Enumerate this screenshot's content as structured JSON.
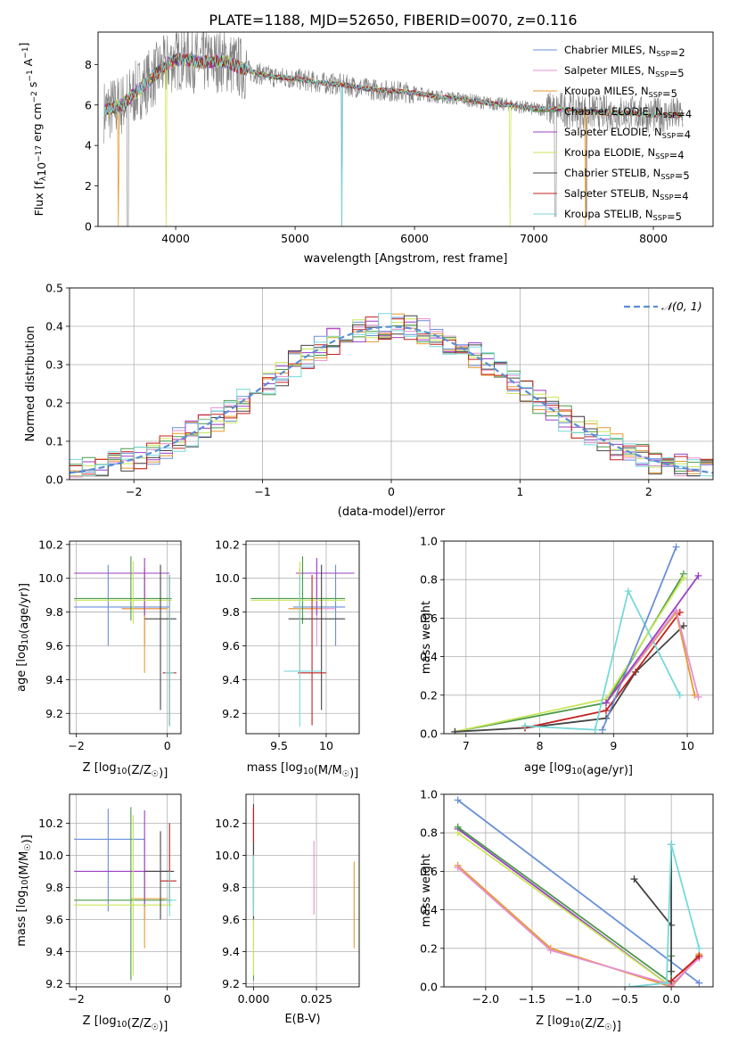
{
  "figure_title": "PLATE=1188, MJD=52650, FIBERID=0070, z=0.116",
  "colors": {
    "Chabrier MILES": "#6a8fd8",
    "Salpeter MILES": "#e58fd0",
    "Kroupa MILES": "#e69a2e",
    "Chabrier ELODIE": "#4a9a4a",
    "Salpeter ELODIE": "#9b3fc4",
    "Kroupa ELODIE": "#c8e65a",
    "Chabrier STELIB": "#444444",
    "Salpeter STELIB": "#c42020",
    "Kroupa STELIB": "#78d8d8",
    "gauss": "#5b8fd9",
    "data": "#808080"
  },
  "chart_data": [
    {
      "id": "spectrum",
      "type": "line",
      "xlabel": "wavelength [Angstrom, rest frame]",
      "ylabel": "Flux [f",
      "ylabel_sub": "λ",
      "ylabel_rest": "10",
      "ylabel_exp": "−17",
      "ylabel_units": " erg cm",
      "ylabel_exp2": "−2",
      "ylabel_s": " s",
      "ylabel_exp3": "−1",
      "ylabel_a": " A",
      "ylabel_exp4": "−1",
      "ylabel_end": "]",
      "xlim": [
        3350,
        8500
      ],
      "ylim": [
        0,
        9.6
      ],
      "xticks": [
        4000,
        5000,
        6000,
        7000,
        8000
      ],
      "yticks": [
        0,
        2,
        4,
        6,
        8
      ],
      "legend_position": "top-right",
      "grid": false,
      "legend": [
        {
          "label": "Chabrier MILES, N",
          "sub": "SSP",
          "tail": "=2"
        },
        {
          "label": "Salpeter MILES, N",
          "sub": "SSP",
          "tail": "=5"
        },
        {
          "label": "Kroupa MILES, N",
          "sub": "SSP",
          "tail": "=5"
        },
        {
          "label": "Chabrier ELODIE, N",
          "sub": "SSP",
          "tail": "=4"
        },
        {
          "label": "Salpeter ELODIE, N",
          "sub": "SSP",
          "tail": "=4"
        },
        {
          "label": "Kroupa ELODIE, N",
          "sub": "SSP",
          "tail": "=4"
        },
        {
          "label": "Chabrier STELIB, N",
          "sub": "SSP",
          "tail": "=5"
        },
        {
          "label": "Salpeter STELIB, N",
          "sub": "SSP",
          "tail": "=4"
        },
        {
          "label": "Kroupa STELIB, N",
          "sub": "SSP",
          "tail": "=5"
        }
      ],
      "continuum": {
        "x": [
          3400,
          3550,
          3700,
          3850,
          3950,
          4050,
          4200,
          4400,
          4600,
          4800,
          5000,
          5200,
          5400,
          5600,
          5800,
          6000,
          6200,
          6400,
          6600,
          6800,
          7000,
          7200,
          7400,
          7600,
          7800,
          8000,
          8250
        ],
        "y": [
          5.7,
          6.0,
          6.8,
          7.6,
          8.1,
          8.3,
          8.1,
          8.2,
          7.7,
          7.4,
          7.3,
          7.1,
          7.0,
          6.8,
          6.7,
          6.6,
          6.4,
          6.3,
          6.1,
          6.0,
          5.8,
          5.8,
          5.7,
          5.6,
          5.6,
          5.5,
          5.5
        ]
      }
    },
    {
      "id": "residuals",
      "type": "step",
      "xlabel": "(data-model)/error",
      "ylabel": "Normed distribution",
      "xlim": [
        -2.5,
        2.5
      ],
      "ylim": [
        0,
        0.5
      ],
      "xticks": [
        -2,
        -1,
        0,
        1,
        2
      ],
      "yticks": [
        0.0,
        0.1,
        0.2,
        0.3,
        0.4,
        0.5
      ],
      "grid": true,
      "legend": [
        {
          "label": "𝒩(0, 1)"
        }
      ],
      "legend_position": "top-right",
      "gaussian": {
        "mu": 0,
        "sigma": 1
      },
      "bin_width": 0.1
    },
    {
      "id": "age_vs_Z",
      "type": "errorbar",
      "xlabel": "Z [log",
      "xlabel_sub": "10",
      "xlabel_rest": "(Z/Z",
      "xlabel_sub2": "☉",
      "xlabel_end": ")]",
      "ylabel": "age  [log",
      "ylabel_sub": "10",
      "ylabel_rest": "(age/yr)]",
      "xlim": [
        -2.15,
        0.3
      ],
      "ylim": [
        9.08,
        10.22
      ],
      "xticks": [
        -2,
        0
      ],
      "yticks": [
        9.2,
        9.4,
        9.6,
        9.8,
        10.0,
        10.2
      ],
      "grid": true,
      "points": [
        {
          "model": "Chabrier MILES",
          "x": -1.3,
          "xlo": -2.05,
          "xhi": 0.05,
          "y": 9.83,
          "ylo": 9.6,
          "yhi": 10.08
        },
        {
          "model": "Salpeter MILES",
          "x": -0.5,
          "xlo": -1.0,
          "xhi": 0.0,
          "y": 9.82,
          "ylo": 9.6,
          "yhi": 10.06
        },
        {
          "model": "Kroupa MILES",
          "x": -0.5,
          "xlo": -1.0,
          "xhi": 0.0,
          "y": 9.82,
          "ylo": 9.44,
          "yhi": 10.06
        },
        {
          "model": "Chabrier ELODIE",
          "x": -0.8,
          "xlo": -2.05,
          "xhi": 0.1,
          "y": 9.88,
          "ylo": 9.75,
          "yhi": 10.13
        },
        {
          "model": "Salpeter ELODIE",
          "x": -0.5,
          "xlo": -2.05,
          "xhi": 0.05,
          "y": 10.03,
          "ylo": 9.78,
          "yhi": 10.12
        },
        {
          "model": "Kroupa ELODIE",
          "x": -0.75,
          "xlo": -2.05,
          "xhi": 0.1,
          "y": 9.87,
          "ylo": 9.73,
          "yhi": 10.1
        },
        {
          "model": "Chabrier STELIB",
          "x": -0.15,
          "xlo": -0.5,
          "xhi": 0.2,
          "y": 9.76,
          "ylo": 9.22,
          "yhi": 10.08
        },
        {
          "model": "Salpeter STELIB",
          "x": 0.05,
          "xlo": -0.1,
          "xhi": 0.2,
          "y": 9.44,
          "ylo": 9.13,
          "yhi": 10.02
        },
        {
          "model": "Kroupa STELIB",
          "x": 0.05,
          "xlo": -0.05,
          "xhi": 0.15,
          "y": 9.44,
          "ylo": 9.12,
          "yhi": 10.02
        }
      ]
    },
    {
      "id": "age_vs_mass",
      "type": "errorbar",
      "xlabel": "mass [log",
      "xlabel_sub": "10",
      "xlabel_rest": "(M/M",
      "xlabel_sub2": "☉",
      "xlabel_end": ")]",
      "xlim": [
        9.15,
        10.35
      ],
      "ylim": [
        9.08,
        10.22
      ],
      "xticks": [
        9.5,
        10.0
      ],
      "yticks": [
        9.2,
        9.4,
        9.6,
        9.8,
        10.0,
        10.2
      ],
      "grid": true,
      "points": [
        {
          "model": "Chabrier MILES",
          "x": 10.1,
          "xlo": 9.65,
          "xhi": 10.2,
          "y": 9.83,
          "ylo": 9.6,
          "yhi": 10.08
        },
        {
          "model": "Salpeter MILES",
          "x": 9.9,
          "xlo": 9.6,
          "xhi": 10.1,
          "y": 9.82,
          "ylo": 9.6,
          "yhi": 10.1
        },
        {
          "model": "Kroupa MILES",
          "x": 9.72,
          "xlo": 9.6,
          "xhi": 9.95,
          "y": 9.82,
          "ylo": 9.44,
          "yhi": 10.06
        },
        {
          "model": "Chabrier ELODIE",
          "x": 9.75,
          "xlo": 9.2,
          "xhi": 10.2,
          "y": 9.88,
          "ylo": 9.73,
          "yhi": 10.13
        },
        {
          "model": "Salpeter ELODIE",
          "x": 9.9,
          "xlo": 9.68,
          "xhi": 10.3,
          "y": 10.03,
          "ylo": 9.78,
          "yhi": 10.12
        },
        {
          "model": "Kroupa ELODIE",
          "x": 9.72,
          "xlo": 9.2,
          "xhi": 10.2,
          "y": 9.87,
          "ylo": 9.73,
          "yhi": 10.1
        },
        {
          "model": "Chabrier STELIB",
          "x": 9.95,
          "xlo": 9.6,
          "xhi": 10.2,
          "y": 9.76,
          "ylo": 9.22,
          "yhi": 10.08
        },
        {
          "model": "Salpeter STELIB",
          "x": 9.85,
          "xlo": 9.7,
          "xhi": 10.0,
          "y": 9.44,
          "ylo": 9.13,
          "yhi": 10.02
        },
        {
          "model": "Kroupa STELIB",
          "x": 9.72,
          "xlo": 9.55,
          "xhi": 9.95,
          "y": 9.45,
          "ylo": 9.12,
          "yhi": 10.02
        }
      ]
    },
    {
      "id": "weight_vs_age",
      "type": "line",
      "xlabel": "age  [log",
      "xlabel_sub": "10",
      "xlabel_rest": "(age/yr)]",
      "ylabel": "mass weight",
      "xlim": [
        6.7,
        10.35
      ],
      "ylim": [
        0,
        1.0
      ],
      "xticks": [
        7,
        8,
        9,
        10
      ],
      "yticks": [
        0.0,
        0.2,
        0.4,
        0.6,
        0.8,
        1.0
      ],
      "grid": true,
      "series": [
        {
          "model": "Chabrier ELODIE",
          "x": [
            6.85,
            8.9,
            9.95
          ],
          "y": [
            0.01,
            0.16,
            0.83
          ]
        },
        {
          "model": "Kroupa ELODIE",
          "x": [
            6.85,
            8.9,
            9.95
          ],
          "y": [
            0.01,
            0.18,
            0.81
          ]
        },
        {
          "model": "Chabrier STELIB",
          "x": [
            6.85,
            7.8,
            8.9,
            9.3,
            9.95
          ],
          "y": [
            0.01,
            0.03,
            0.08,
            0.32,
            0.56
          ]
        },
        {
          "model": "Salpeter STELIB",
          "x": [
            7.8,
            8.9,
            9.9
          ],
          "y": [
            0.03,
            0.12,
            0.63
          ]
        },
        {
          "model": "Kroupa STELIB",
          "x": [
            7.8,
            8.75,
            9.2,
            9.9
          ],
          "y": [
            0.04,
            0.02,
            0.74,
            0.2
          ]
        },
        {
          "model": "Chabrier MILES",
          "x": [
            8.85,
            9.85
          ],
          "y": [
            0.02,
            0.97
          ]
        },
        {
          "model": "Kroupa MILES",
          "x": [
            8.9,
            9.85,
            10.1
          ],
          "y": [
            0.16,
            0.63,
            0.2
          ]
        },
        {
          "model": "Salpeter MILES",
          "x": [
            8.9,
            9.85,
            10.15
          ],
          "y": [
            0.16,
            0.64,
            0.19
          ]
        },
        {
          "model": "Salpeter ELODIE",
          "x": [
            8.9,
            10.15
          ],
          "y": [
            0.16,
            0.82
          ]
        }
      ]
    },
    {
      "id": "mass_vs_Z",
      "type": "errorbar",
      "xlabel": "Z [log",
      "xlabel_sub": "10",
      "xlabel_rest": "(Z/Z",
      "xlabel_sub2": "☉",
      "xlabel_end": ")]",
      "ylabel": "mass [log",
      "ylabel_sub": "10",
      "ylabel_rest": "(M/M",
      "ylabel_sub2": "☉",
      "ylabel_end": ")]",
      "xlim": [
        -2.15,
        0.3
      ],
      "ylim": [
        9.18,
        10.38
      ],
      "xticks": [
        -2,
        0
      ],
      "yticks": [
        9.2,
        9.4,
        9.6,
        9.8,
        10.0,
        10.2
      ],
      "grid": true,
      "points": [
        {
          "model": "Chabrier MILES",
          "x": -1.3,
          "xlo": -2.05,
          "xhi": -0.5,
          "y": 10.1,
          "ylo": 9.65,
          "yhi": 10.29
        },
        {
          "model": "Salpeter MILES",
          "x": -0.5,
          "xlo": -0.8,
          "xhi": 0.0,
          "y": 9.9,
          "ylo": 9.6,
          "yhi": 10.1
        },
        {
          "model": "Kroupa MILES",
          "x": -0.5,
          "xlo": -0.8,
          "xhi": 0.0,
          "y": 9.73,
          "ylo": 9.42,
          "yhi": 9.9
        },
        {
          "model": "Chabrier ELODIE",
          "x": -0.8,
          "xlo": -2.05,
          "xhi": 0.1,
          "y": 9.72,
          "ylo": 9.22,
          "yhi": 10.3
        },
        {
          "model": "Salpeter ELODIE",
          "x": -0.5,
          "xlo": -2.05,
          "xhi": 0.05,
          "y": 9.9,
          "ylo": 9.68,
          "yhi": 10.28
        },
        {
          "model": "Kroupa ELODIE",
          "x": -0.75,
          "xlo": -2.05,
          "xhi": 0.1,
          "y": 9.69,
          "ylo": 9.25,
          "yhi": 10.25
        },
        {
          "model": "Chabrier STELIB",
          "x": -0.15,
          "xlo": -0.5,
          "xhi": 0.15,
          "y": 9.9,
          "ylo": 9.6,
          "yhi": 10.15
        },
        {
          "model": "Salpeter STELIB",
          "x": 0.05,
          "xlo": -0.15,
          "xhi": 0.2,
          "y": 9.84,
          "ylo": 9.7,
          "yhi": 10.2
        },
        {
          "model": "Kroupa STELIB",
          "x": 0.05,
          "xlo": -0.05,
          "xhi": 0.2,
          "y": 9.72,
          "ylo": 9.62,
          "yhi": 9.9
        }
      ]
    },
    {
      "id": "mass_vs_ebv",
      "type": "errorbar",
      "xlabel": "E(B-V)",
      "xlim": [
        -0.003,
        0.042
      ],
      "ylim": [
        9.18,
        10.38
      ],
      "xticks": [
        0.0,
        0.025
      ],
      "xtick_labels": [
        "0.000",
        "0.025"
      ],
      "yticks": [
        9.2,
        9.4,
        9.6,
        9.8,
        10.0,
        10.2
      ],
      "grid": true,
      "points": [
        {
          "model": "Chabrier MILES",
          "x": 0.0,
          "y": 10.1,
          "ylo": 9.65,
          "yhi": 10.29
        },
        {
          "model": "Salpeter MILES",
          "x": 0.024,
          "y": 9.9,
          "ylo": 9.63,
          "yhi": 10.09
        },
        {
          "model": "Kroupa MILES",
          "x": 0.04,
          "y": 9.73,
          "ylo": 9.42,
          "yhi": 9.96
        },
        {
          "model": "Chabrier ELODIE",
          "x": 0.0,
          "y": 9.72,
          "ylo": 9.22,
          "yhi": 10.3
        },
        {
          "model": "Salpeter ELODIE",
          "x": 0.0,
          "y": 9.9,
          "ylo": 9.68,
          "yhi": 10.28
        },
        {
          "model": "Kroupa ELODIE",
          "x": 0.0,
          "y": 9.69,
          "ylo": 9.25,
          "yhi": 10.25
        },
        {
          "model": "Chabrier STELIB",
          "x": 0.0,
          "y": 9.9,
          "ylo": 9.6,
          "yhi": 10.32
        },
        {
          "model": "Salpeter STELIB",
          "x": 0.0,
          "y": 10.15,
          "ylo": 10.08,
          "yhi": 10.3
        },
        {
          "model": "Kroupa STELIB",
          "x": 0.0,
          "y": 9.72,
          "ylo": 9.62,
          "yhi": 10.0
        }
      ]
    },
    {
      "id": "weight_vs_Z",
      "type": "line",
      "xlabel": "Z [log",
      "xlabel_sub": "10",
      "xlabel_rest": "(Z/Z",
      "xlabel_sub2": "☉",
      "xlabel_end": ")]",
      "ylabel": "mass weight",
      "xlim": [
        -2.45,
        0.45
      ],
      "ylim": [
        0,
        1.0
      ],
      "xticks": [
        -2.0,
        -1.5,
        -1.0,
        -0.5,
        0.0
      ],
      "xtick_labels": [
        "−2.0",
        "−1.5",
        "−1.0",
        "−0.5",
        "0.0"
      ],
      "yticks": [
        0.0,
        0.2,
        0.4,
        0.6,
        0.8,
        1.0
      ],
      "grid": true,
      "series": [
        {
          "model": "Chabrier MILES",
          "x": [
            -2.3,
            0.3
          ],
          "y": [
            0.97,
            0.02
          ]
        },
        {
          "model": "Salpeter ELODIE",
          "x": [
            -2.3,
            0.0,
            0.3
          ],
          "y": [
            0.82,
            0.0,
            0.16
          ]
        },
        {
          "model": "Kroupa ELODIE",
          "x": [
            -2.3,
            0.0
          ],
          "y": [
            0.8,
            0.0
          ]
        },
        {
          "model": "Chabrier ELODIE",
          "x": [
            -2.3,
            0.0,
            0.0
          ],
          "y": [
            0.83,
            0.02,
            0.16
          ]
        },
        {
          "model": "Kroupa MILES",
          "x": [
            -2.3,
            -1.3,
            0.0,
            0.3
          ],
          "y": [
            0.63,
            0.2,
            0.0,
            0.17
          ]
        },
        {
          "model": "Salpeter MILES",
          "x": [
            -2.3,
            -1.3,
            0.0,
            0.3
          ],
          "y": [
            0.62,
            0.19,
            0.01,
            0.15
          ]
        },
        {
          "model": "Chabrier STELIB",
          "x": [
            -0.4,
            0.0,
            0.0,
            0.0
          ],
          "y": [
            0.56,
            0.32,
            0.74,
            0.08
          ]
        },
        {
          "model": "Salpeter STELIB",
          "x": [
            0.0,
            0.3
          ],
          "y": [
            0.03,
            0.16
          ]
        },
        {
          "model": "Kroupa STELIB",
          "x": [
            -0.45,
            -0.05,
            0.0,
            0.3
          ],
          "y": [
            0.0,
            0.02,
            0.74,
            0.2
          ]
        }
      ]
    }
  ]
}
